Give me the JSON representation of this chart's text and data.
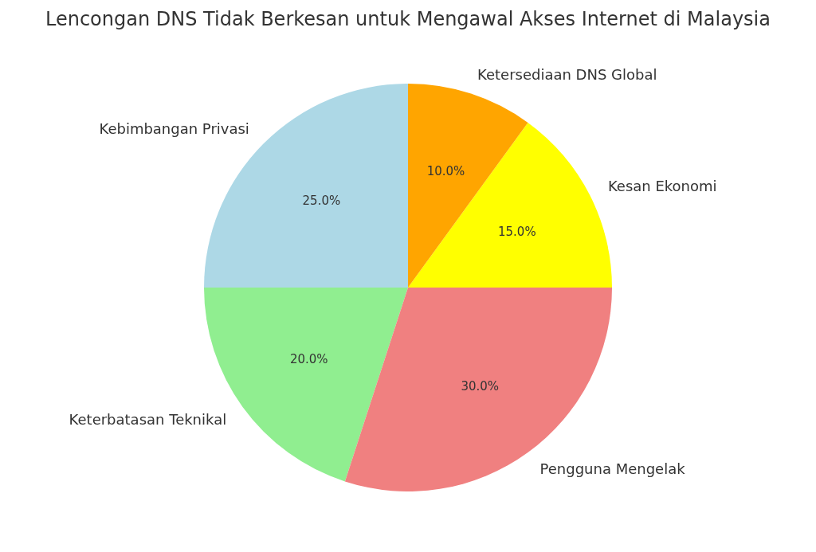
{
  "chart_data": {
    "type": "pie",
    "title": "Lencongan DNS Tidak Berkesan untuk Mengawal Akses Internet di Malaysia",
    "categories": [
      "Kebimbangan Privasi",
      "Keterbatasan Teknikal",
      "Pengguna Mengelak",
      "Kesan Ekonomi",
      "Ketersediaan DNS Global"
    ],
    "values": [
      25,
      20,
      30,
      15,
      10
    ],
    "colors": [
      "#add8e6",
      "#90ee90",
      "#f08080",
      "#ffff00",
      "#ffa500"
    ],
    "value_labels": [
      "25.0%",
      "20.0%",
      "30.0%",
      "15.0%",
      "10.0%"
    ]
  }
}
